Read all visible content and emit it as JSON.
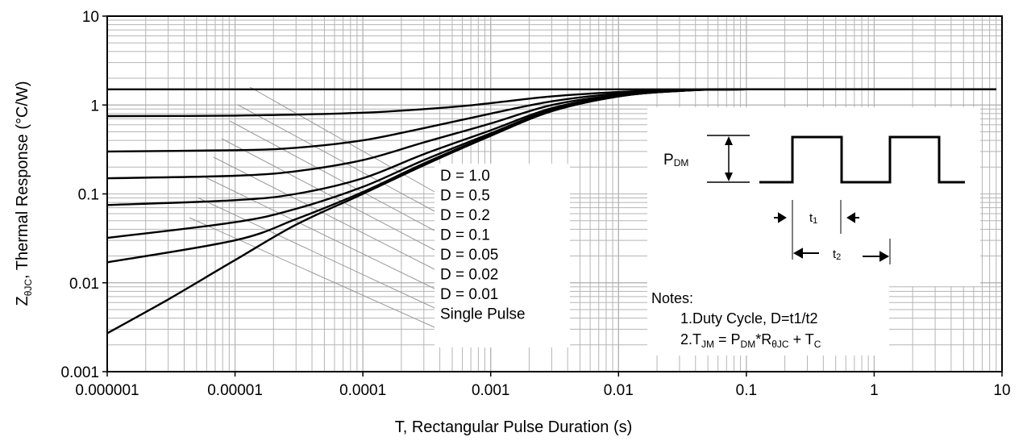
{
  "chart_data": {
    "type": "line",
    "title": "",
    "xlabel": "T, Rectangular Pulse Duration (s)",
    "ylabel": {
      "main": "Z",
      "subscript": "θJC",
      "rest": ", Thermal Response (°C/W)"
    },
    "x_scale": "log",
    "y_scale": "log",
    "xlim": [
      1e-06,
      10
    ],
    "ylim": [
      0.001,
      10
    ],
    "x_tick_labels": [
      "0.000001",
      "0.00001",
      "0.0001",
      "0.001",
      "0.01",
      "0.1",
      "1",
      "10"
    ],
    "y_tick_labels": [
      "0.001",
      "0.01",
      "0.1",
      "1",
      "10"
    ],
    "grid": true,
    "series": [
      {
        "name": "D = 1.0",
        "x": [
          1e-06,
          1e-05,
          0.001,
          0.1,
          9
        ],
        "y": [
          1.5,
          1.5,
          1.5,
          1.5,
          1.5
        ]
      },
      {
        "name": "D = 0.5",
        "x": [
          1e-06,
          1e-05,
          0.0001,
          0.0005,
          0.001,
          0.003,
          0.01,
          0.03,
          0.1,
          9
        ],
        "y": [
          0.75,
          0.76,
          0.82,
          0.95,
          1.05,
          1.25,
          1.4,
          1.48,
          1.5,
          1.5
        ]
      },
      {
        "name": "D = 0.2",
        "x": [
          1e-06,
          1e-05,
          3e-05,
          0.0001,
          0.0003,
          0.001,
          0.003,
          0.01,
          0.03,
          0.1,
          9
        ],
        "y": [
          0.3,
          0.31,
          0.33,
          0.4,
          0.55,
          0.8,
          1.1,
          1.35,
          1.47,
          1.5,
          1.5
        ]
      },
      {
        "name": "D = 0.1",
        "x": [
          1e-06,
          1e-05,
          3e-05,
          0.0001,
          0.0003,
          0.001,
          0.003,
          0.01,
          0.03,
          0.1,
          9
        ],
        "y": [
          0.15,
          0.16,
          0.18,
          0.24,
          0.38,
          0.62,
          1.0,
          1.3,
          1.45,
          1.5,
          1.5
        ]
      },
      {
        "name": "D = 0.05",
        "x": [
          1e-06,
          1e-05,
          3e-05,
          0.0001,
          0.0003,
          0.001,
          0.003,
          0.01,
          0.03,
          0.1,
          9
        ],
        "y": [
          0.075,
          0.085,
          0.1,
          0.15,
          0.28,
          0.52,
          0.92,
          1.28,
          1.45,
          1.5,
          1.5
        ]
      },
      {
        "name": "D = 0.02",
        "x": [
          1e-06,
          1e-05,
          3e-05,
          0.0001,
          0.0003,
          0.001,
          0.003,
          0.01,
          0.03,
          0.1,
          9
        ],
        "y": [
          0.032,
          0.048,
          0.068,
          0.12,
          0.24,
          0.48,
          0.88,
          1.26,
          1.44,
          1.5,
          1.5
        ]
      },
      {
        "name": "D = 0.01",
        "x": [
          1e-06,
          1e-05,
          3e-05,
          0.0001,
          0.0003,
          0.001,
          0.003,
          0.01,
          0.03,
          0.1,
          9
        ],
        "y": [
          0.017,
          0.03,
          0.052,
          0.105,
          0.22,
          0.46,
          0.86,
          1.25,
          1.44,
          1.5,
          1.5
        ]
      },
      {
        "name": "Single Pulse",
        "x": [
          1e-06,
          3e-06,
          1e-05,
          3e-05,
          0.0001,
          0.0003,
          0.001,
          0.003,
          0.01,
          0.03,
          0.1,
          9
        ],
        "y": [
          0.0027,
          0.0065,
          0.018,
          0.045,
          0.1,
          0.21,
          0.45,
          0.85,
          1.25,
          1.44,
          1.5,
          1.5
        ]
      }
    ],
    "legend": {
      "placement": "center",
      "entries": [
        "D = 1.0",
        "D = 0.5",
        "D = 0.2",
        "D = 0.1",
        "D = 0.05",
        "D = 0.02",
        "D = 0.01",
        "Single Pulse"
      ]
    },
    "inset": {
      "pdm_label": {
        "main": "P",
        "sub": "DM"
      },
      "t1_label": {
        "main": "t",
        "sub": "1"
      },
      "t2_label": {
        "main": "t",
        "sub": "2"
      }
    },
    "notes": {
      "heading": "Notes:",
      "line1": "1.Duty  Cycle, D=t1/t2",
      "line2": [
        {
          "t": "2.T",
          "s": false
        },
        {
          "t": "JM",
          "s": true
        },
        {
          "t": " = P",
          "s": false
        },
        {
          "t": "DM",
          "s": true
        },
        {
          "t": "*R",
          "s": false
        },
        {
          "t": "θJC",
          "s": true
        },
        {
          "t": " + T",
          "s": false
        },
        {
          "t": "C",
          "s": true
        }
      ]
    }
  }
}
